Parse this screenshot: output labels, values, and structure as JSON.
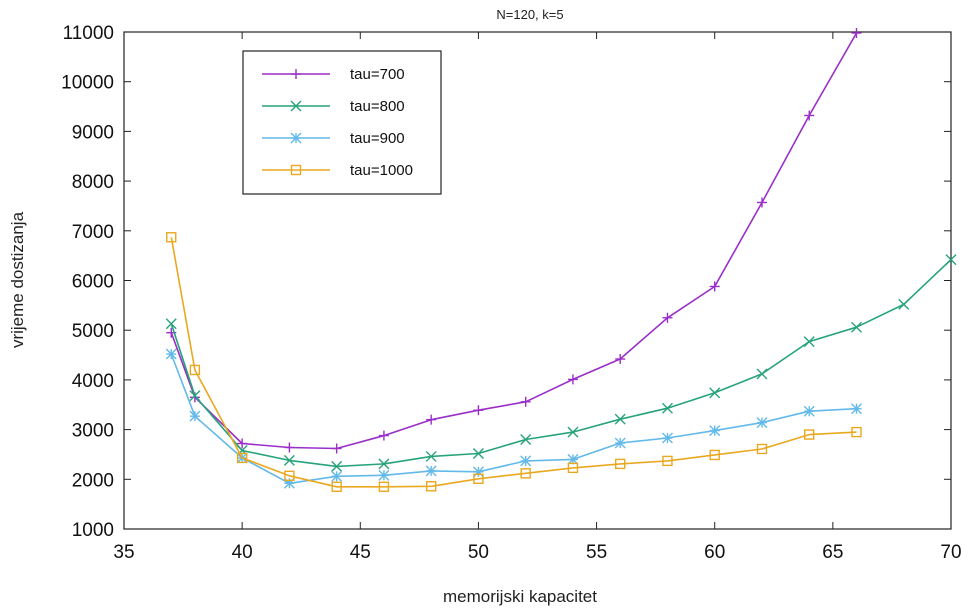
{
  "chart_data": {
    "type": "line",
    "title": "N=120, k=5",
    "xlabel": "memorijski kapacitet",
    "ylabel": "vrijeme dostizanja",
    "xlim": [
      35,
      70
    ],
    "ylim": [
      1000,
      11000
    ],
    "xticks": [
      35,
      40,
      45,
      50,
      55,
      60,
      65,
      70
    ],
    "yticks": [
      1000,
      2000,
      3000,
      4000,
      5000,
      6000,
      7000,
      8000,
      9000,
      10000,
      11000
    ],
    "grid": false,
    "legend_position": "top-left",
    "series": [
      {
        "name": "tau=700",
        "color": "#9a2ec8",
        "marker": "plus",
        "x": [
          37,
          38,
          40,
          42,
          44,
          46,
          48,
          50,
          52,
          54,
          56,
          58,
          60,
          62,
          64,
          66
        ],
        "y": [
          4950,
          3650,
          2720,
          2640,
          2620,
          2880,
          3200,
          3390,
          3560,
          4010,
          4420,
          5250,
          5880,
          7570,
          9320,
          10980
        ]
      },
      {
        "name": "tau=800",
        "color": "#27a37a",
        "marker": "x",
        "x": [
          37,
          38,
          40,
          42,
          44,
          46,
          48,
          50,
          52,
          54,
          56,
          58,
          60,
          62,
          64,
          66,
          68,
          70
        ],
        "y": [
          5130,
          3680,
          2580,
          2380,
          2260,
          2310,
          2460,
          2520,
          2800,
          2950,
          3210,
          3430,
          3740,
          4120,
          4770,
          5060,
          5520,
          6420
        ]
      },
      {
        "name": "tau=900",
        "color": "#63b9ea",
        "marker": "star",
        "x": [
          37,
          38,
          40,
          42,
          44,
          46,
          48,
          50,
          52,
          54,
          56,
          58,
          60,
          62,
          64,
          66
        ],
        "y": [
          4520,
          3270,
          2430,
          1920,
          2060,
          2080,
          2170,
          2150,
          2370,
          2400,
          2730,
          2830,
          2980,
          3140,
          3370,
          3420
        ]
      },
      {
        "name": "tau=1000",
        "color": "#e9a820",
        "marker": "square",
        "x": [
          37,
          38,
          40,
          42,
          44,
          46,
          48,
          50,
          52,
          54,
          56,
          58,
          60,
          62,
          64,
          66
        ],
        "y": [
          6870,
          4200,
          2430,
          2070,
          1850,
          1850,
          1860,
          2010,
          2120,
          2230,
          2310,
          2370,
          2490,
          2610,
          2900,
          2950
        ]
      }
    ]
  }
}
